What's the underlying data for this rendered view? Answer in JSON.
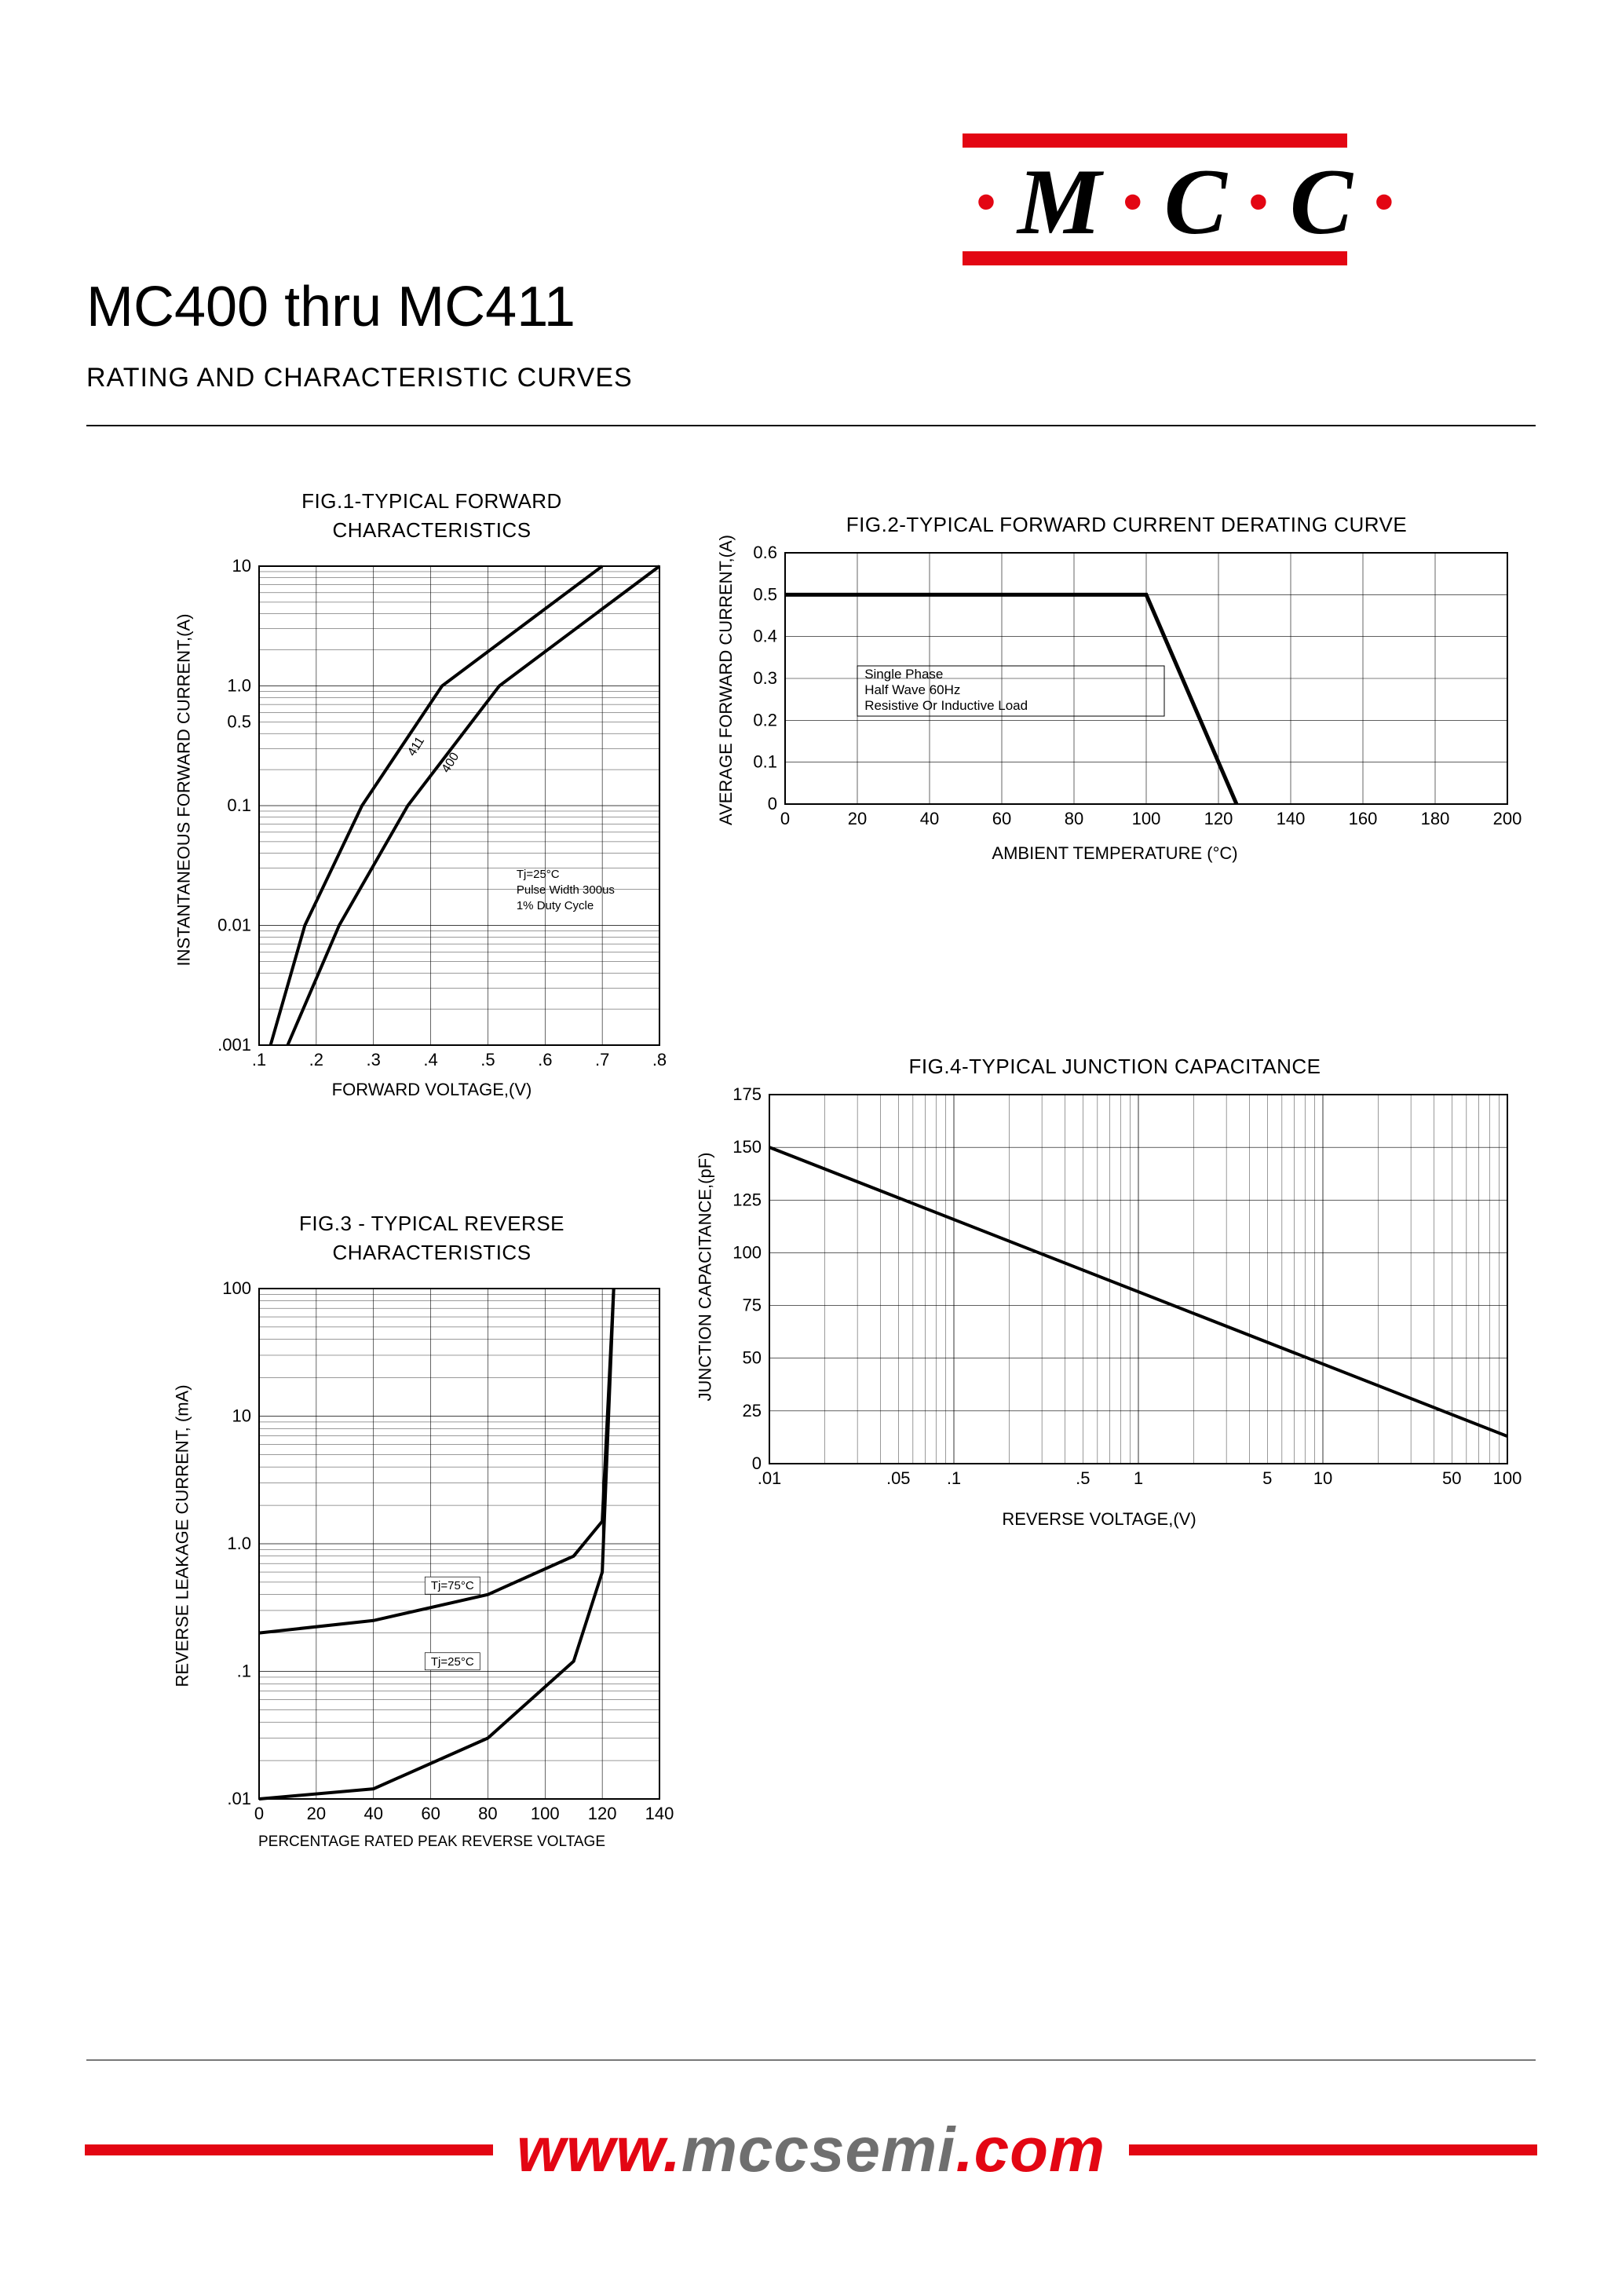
{
  "logo": {
    "text_parts": [
      "M",
      "C",
      "C"
    ],
    "bar_color": "#e30613"
  },
  "header": {
    "title": "MC400 thru MC411",
    "subtitle": "RATING AND CHARACTERISTIC CURVES"
  },
  "fig1": {
    "type": "line",
    "title_l1": "FIG.1-TYPICAL FORWARD",
    "title_l2": "CHARACTERISTICS",
    "xlabel": "FORWARD VOLTAGE,(V)",
    "ylabel": "INSTANTANEOUS FORWARD CURRENT,(A)",
    "xlim": [
      0.1,
      0.8
    ],
    "ylim": [
      0.001,
      10
    ],
    "yscale": "log",
    "xticks": [
      0.1,
      0.2,
      0.3,
      0.4,
      0.5,
      0.6,
      0.7,
      0.8
    ],
    "xtick_labels": [
      ".1",
      ".2",
      ".3",
      ".4",
      ".5",
      ".6",
      ".7",
      ".8"
    ],
    "ytick_labels_major": [
      ".001",
      "0.01",
      "0.1",
      "0.5",
      "1.0",
      "10"
    ],
    "series": [
      {
        "name": "411",
        "label": "411",
        "data": [
          [
            0.12,
            0.001
          ],
          [
            0.18,
            0.01
          ],
          [
            0.28,
            0.1
          ],
          [
            0.42,
            1.0
          ],
          [
            0.7,
            10.0
          ]
        ]
      },
      {
        "name": "400",
        "label": "400",
        "data": [
          [
            0.15,
            0.001
          ],
          [
            0.24,
            0.01
          ],
          [
            0.36,
            0.1
          ],
          [
            0.52,
            1.0
          ],
          [
            0.8,
            10.0
          ]
        ]
      }
    ],
    "annotation": [
      "Tj=25°C",
      "Pulse Width 300us",
      "1% Duty Cycle"
    ],
    "line_color": "#000000",
    "line_width": 4,
    "grid_color": "#000000",
    "background_color": "#ffffff",
    "tick_fontsize": 22
  },
  "fig2": {
    "type": "line",
    "title": "FIG.2-TYPICAL FORWARD CURRENT DERATING CURVE",
    "xlabel": "AMBIENT TEMPERATURE (°C)",
    "ylabel": "AVERAGE FORWARD CURRENT,(A)",
    "xlim": [
      0,
      200
    ],
    "ylim": [
      0,
      0.6
    ],
    "xticks": [
      0,
      20,
      40,
      60,
      80,
      100,
      120,
      140,
      160,
      180,
      200
    ],
    "yticks": [
      0,
      0.1,
      0.2,
      0.3,
      0.4,
      0.5,
      0.6
    ],
    "data": [
      [
        0,
        0.5
      ],
      [
        100,
        0.5
      ],
      [
        125,
        0
      ]
    ],
    "annotation": [
      "Single Phase",
      "Half Wave 60Hz",
      "Resistive Or Inductive Load"
    ],
    "line_color": "#000000",
    "line_width": 5,
    "grid_color": "#000000",
    "background_color": "#ffffff",
    "tick_fontsize": 22
  },
  "fig3": {
    "type": "line",
    "title_l1": "FIG.3 - TYPICAL REVERSE",
    "title_l2": "CHARACTERISTICS",
    "xlabel": "PERCENTAGE RATED PEAK REVERSE VOLTAGE",
    "ylabel": "REVERSE LEAKAGE CURRENT, (mA)",
    "xlim": [
      0,
      140
    ],
    "ylim": [
      0.01,
      100
    ],
    "yscale": "log",
    "xticks": [
      0,
      20,
      40,
      60,
      80,
      100,
      120,
      140
    ],
    "ytick_labels_major": [
      ".01",
      ".1",
      "1.0",
      "10",
      "100"
    ],
    "series": [
      {
        "name": "Tj75",
        "label": "Tj=75°C",
        "data": [
          [
            0,
            0.2
          ],
          [
            40,
            0.25
          ],
          [
            80,
            0.4
          ],
          [
            110,
            0.8
          ],
          [
            120,
            1.5
          ],
          [
            124,
            100
          ]
        ]
      },
      {
        "name": "Tj25",
        "label": "Tj=25°C",
        "data": [
          [
            0,
            0.01
          ],
          [
            40,
            0.012
          ],
          [
            80,
            0.03
          ],
          [
            110,
            0.12
          ],
          [
            120,
            0.6
          ],
          [
            124,
            100
          ]
        ]
      }
    ],
    "line_color": "#000000",
    "line_width": 4,
    "grid_color": "#000000",
    "background_color": "#ffffff",
    "tick_fontsize": 22
  },
  "fig4": {
    "type": "line",
    "title": "FIG.4-TYPICAL JUNCTION CAPACITANCE",
    "xlabel": "REVERSE VOLTAGE,(V)",
    "ylabel": "JUNCTION CAPACITANCE,(pF)",
    "xlim": [
      0.01,
      100
    ],
    "ylim": [
      0,
      175
    ],
    "xscale": "log",
    "xtick_labels": [
      ".01",
      ".05",
      ".1",
      ".5",
      "1",
      "5",
      "10",
      "50",
      "100"
    ],
    "xtick_vals": [
      0.01,
      0.05,
      0.1,
      0.5,
      1,
      5,
      10,
      50,
      100
    ],
    "yticks": [
      0,
      25,
      50,
      75,
      100,
      125,
      150,
      175
    ],
    "data": [
      [
        0.01,
        150
      ],
      [
        100,
        13
      ]
    ],
    "line_color": "#000000",
    "line_width": 4,
    "grid_color": "#000000",
    "background_color": "#ffffff",
    "tick_fontsize": 22
  },
  "footer": {
    "url_parts": {
      "w": "www.",
      "m": "mccsemi",
      "c": ".com"
    },
    "bar_color": "#e30613"
  }
}
